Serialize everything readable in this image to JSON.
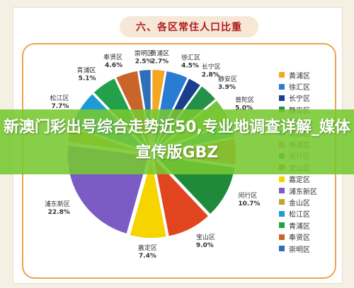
{
  "heading": "六、各区常住人口比重",
  "overlay_text": "新澳门彩出号综合走势近50,专业地调查详解_媒体宣传版GBZ",
  "chart_data": {
    "type": "pie",
    "title": "六、各区常住人口比重",
    "legend_position": "right",
    "slices": [
      {
        "label": "黄浦区",
        "value": 2.7,
        "value_label": "2.7%",
        "color": "#f5a623"
      },
      {
        "label": "徐汇区",
        "value": 4.5,
        "value_label": "4.5%",
        "color": "#2a7bd4"
      },
      {
        "label": "长宁区",
        "value": 2.8,
        "value_label": "2.8%",
        "color": "#1a3f8c"
      },
      {
        "label": "静安区",
        "value": 3.9,
        "value_label": "3.9%",
        "color": "#24904a"
      },
      {
        "label": "普陀区",
        "value": 5.0,
        "value_label": "5.0%",
        "color": "#7cc242"
      },
      {
        "label": "虹口区",
        "value": 3.1,
        "value_label": "",
        "color": "#2fb8a3"
      },
      {
        "label": "杨浦区",
        "value": 5.4,
        "value_label": "",
        "color": "#f26b3a"
      },
      {
        "label": "闵行区",
        "value": 10.7,
        "value_label": "10.7%",
        "color": "#1f8a3a"
      },
      {
        "label": "宝山区",
        "value": 9.0,
        "value_label": "9.0%",
        "color": "#e0451f"
      },
      {
        "label": "嘉定区",
        "value": 7.4,
        "value_label": "7.4%",
        "color": "#f5d400"
      },
      {
        "label": "浦东新区",
        "value": 22.8,
        "value_label": "22.8%",
        "color": "#7b5cc4"
      },
      {
        "label": "金山区",
        "value": 3.1,
        "value_label": "",
        "color": "#c9a227"
      },
      {
        "label": "松江区",
        "value": 7.7,
        "value_label": "7.7%",
        "color": "#1f9ad6"
      },
      {
        "label": "青浦区",
        "value": 5.1,
        "value_label": "5.1%",
        "color": "#22a04a"
      },
      {
        "label": "奉贤区",
        "value": 4.6,
        "value_label": "4.6%",
        "color": "#c9652a"
      },
      {
        "label": "崇明区",
        "value": 2.5,
        "value_label": "2.5%",
        "color": "#2e6fb8"
      }
    ]
  }
}
